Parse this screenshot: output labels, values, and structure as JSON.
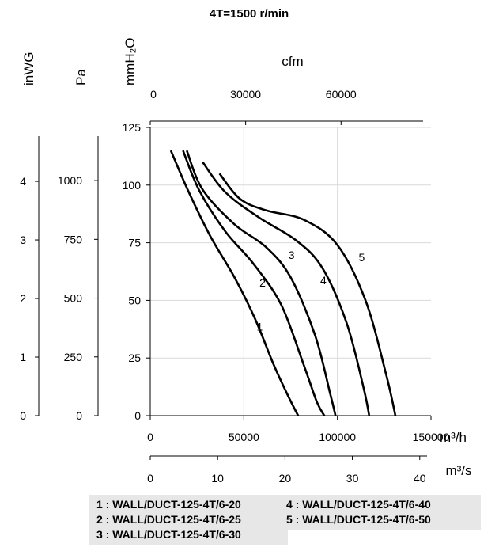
{
  "chart_data": {
    "type": "line",
    "title": "4T=1500  r/min",
    "grid": true,
    "x_axes": [
      {
        "unit": "cfm",
        "ticks": [
          "0",
          "30000",
          "60000"
        ],
        "range": [
          0,
          88287
        ]
      },
      {
        "unit": "m³/h",
        "ticks": [
          "0",
          "50000",
          "100000",
          "150000"
        ],
        "range": [
          0,
          150000
        ]
      },
      {
        "unit": "m³/s",
        "ticks": [
          "0",
          "10",
          "20",
          "30",
          "40"
        ],
        "range": [
          0,
          41.67
        ]
      }
    ],
    "y_axes": [
      {
        "unit": "mmH₂O",
        "ticks": [
          "0",
          "25",
          "50",
          "75",
          "100",
          "125"
        ],
        "range": [
          0,
          125
        ]
      },
      {
        "unit": "Pa",
        "ticks": [
          "0",
          "250",
          "500",
          "750",
          "1000"
        ],
        "range": [
          0,
          1226
        ]
      },
      {
        "unit": "inWG",
        "ticks": [
          "0",
          "1",
          "2",
          "3",
          "4"
        ],
        "range": [
          0,
          4.92
        ]
      }
    ],
    "x_unit": "m³/h",
    "y_unit": "mmH₂O",
    "series": [
      {
        "name": "1",
        "points": [
          [
            11000,
            115
          ],
          [
            20000,
            98
          ],
          [
            32000,
            78
          ],
          [
            45000,
            60
          ],
          [
            56000,
            42
          ],
          [
            66000,
            22
          ],
          [
            74000,
            8
          ],
          [
            79000,
            0
          ]
        ]
      },
      {
        "name": "2",
        "points": [
          [
            17500,
            115
          ],
          [
            26000,
            98
          ],
          [
            40000,
            80
          ],
          [
            55000,
            66
          ],
          [
            70000,
            48
          ],
          [
            82000,
            22
          ],
          [
            89000,
            6
          ],
          [
            93000,
            0
          ]
        ]
      },
      {
        "name": "3",
        "points": [
          [
            19500,
            115
          ],
          [
            28000,
            98
          ],
          [
            45000,
            83
          ],
          [
            62000,
            73
          ],
          [
            75000,
            60
          ],
          [
            88000,
            35
          ],
          [
            96000,
            10
          ],
          [
            99000,
            0
          ]
        ]
      },
      {
        "name": "4",
        "points": [
          [
            28000,
            110
          ],
          [
            40000,
            97
          ],
          [
            58000,
            86
          ],
          [
            78000,
            76
          ],
          [
            92000,
            64
          ],
          [
            105000,
            40
          ],
          [
            114000,
            12
          ],
          [
            117000,
            0
          ]
        ]
      },
      {
        "name": "5",
        "points": [
          [
            37000,
            105
          ],
          [
            48000,
            94
          ],
          [
            62000,
            89
          ],
          [
            82000,
            85
          ],
          [
            100000,
            74
          ],
          [
            115000,
            50
          ],
          [
            126000,
            18
          ],
          [
            131000,
            0
          ]
        ]
      }
    ],
    "curve_labels": [
      {
        "text": "1",
        "at": [
          58500,
          37
        ]
      },
      {
        "text": "2",
        "at": [
          60000,
          56
        ]
      },
      {
        "text": "3",
        "at": [
          75500,
          68
        ]
      },
      {
        "text": "4",
        "at": [
          92500,
          57
        ]
      },
      {
        "text": "5",
        "at": [
          113000,
          67
        ]
      }
    ]
  },
  "legend": {
    "left": [
      "1 : WALL/DUCT-125-4T/6-20",
      "2 : WALL/DUCT-125-4T/6-25",
      "3 : WALL/DUCT-125-4T/6-30"
    ],
    "right": [
      "4 : WALL/DUCT-125-4T/6-40",
      "5 : WALL/DUCT-125-4T/6-50"
    ]
  }
}
